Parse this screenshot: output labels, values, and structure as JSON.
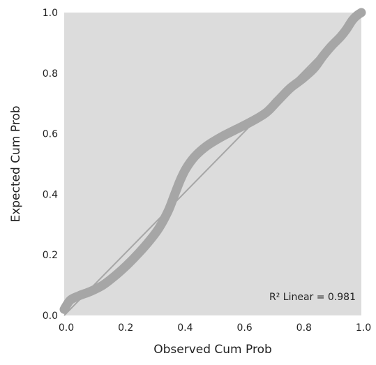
{
  "chart_data": {
    "type": "line",
    "xlabel": "Observed Cum Prob",
    "ylabel": "Expected Cum Prob",
    "xlim": [
      0.0,
      1.0
    ],
    "ylim": [
      0.0,
      1.0
    ],
    "xticks": [
      "0.0",
      "0.2",
      "0.4",
      "0.6",
      "0.8",
      "1.0"
    ],
    "yticks": [
      "0.0",
      "0.2",
      "0.4",
      "0.6",
      "0.8",
      "1.0"
    ],
    "grid": false,
    "annotation": "R² Linear = 0.981",
    "series": [
      {
        "points": [
          [
            0.0,
            0.02
          ],
          [
            0.02,
            0.05
          ],
          [
            0.05,
            0.065
          ],
          [
            0.09,
            0.08
          ],
          [
            0.13,
            0.1
          ],
          [
            0.17,
            0.13
          ],
          [
            0.21,
            0.165
          ],
          [
            0.25,
            0.205
          ],
          [
            0.29,
            0.25
          ],
          [
            0.32,
            0.29
          ],
          [
            0.35,
            0.345
          ],
          [
            0.37,
            0.395
          ],
          [
            0.39,
            0.445
          ],
          [
            0.41,
            0.485
          ],
          [
            0.44,
            0.525
          ],
          [
            0.48,
            0.56
          ],
          [
            0.53,
            0.59
          ],
          [
            0.58,
            0.615
          ],
          [
            0.63,
            0.64
          ],
          [
            0.68,
            0.67
          ],
          [
            0.72,
            0.71
          ],
          [
            0.76,
            0.75
          ],
          [
            0.8,
            0.78
          ],
          [
            0.84,
            0.815
          ],
          [
            0.87,
            0.855
          ],
          [
            0.9,
            0.89
          ],
          [
            0.93,
            0.92
          ],
          [
            0.95,
            0.945
          ],
          [
            0.97,
            0.975
          ],
          [
            0.985,
            0.99
          ],
          [
            1.0,
            1.0
          ]
        ],
        "color": "#a6a6a6"
      }
    ],
    "reference_line": [
      [
        0.0,
        0.0
      ],
      [
        1.0,
        1.0
      ]
    ],
    "reference_color": "#a6a6a6",
    "plot_background": "#dcdcdc"
  }
}
